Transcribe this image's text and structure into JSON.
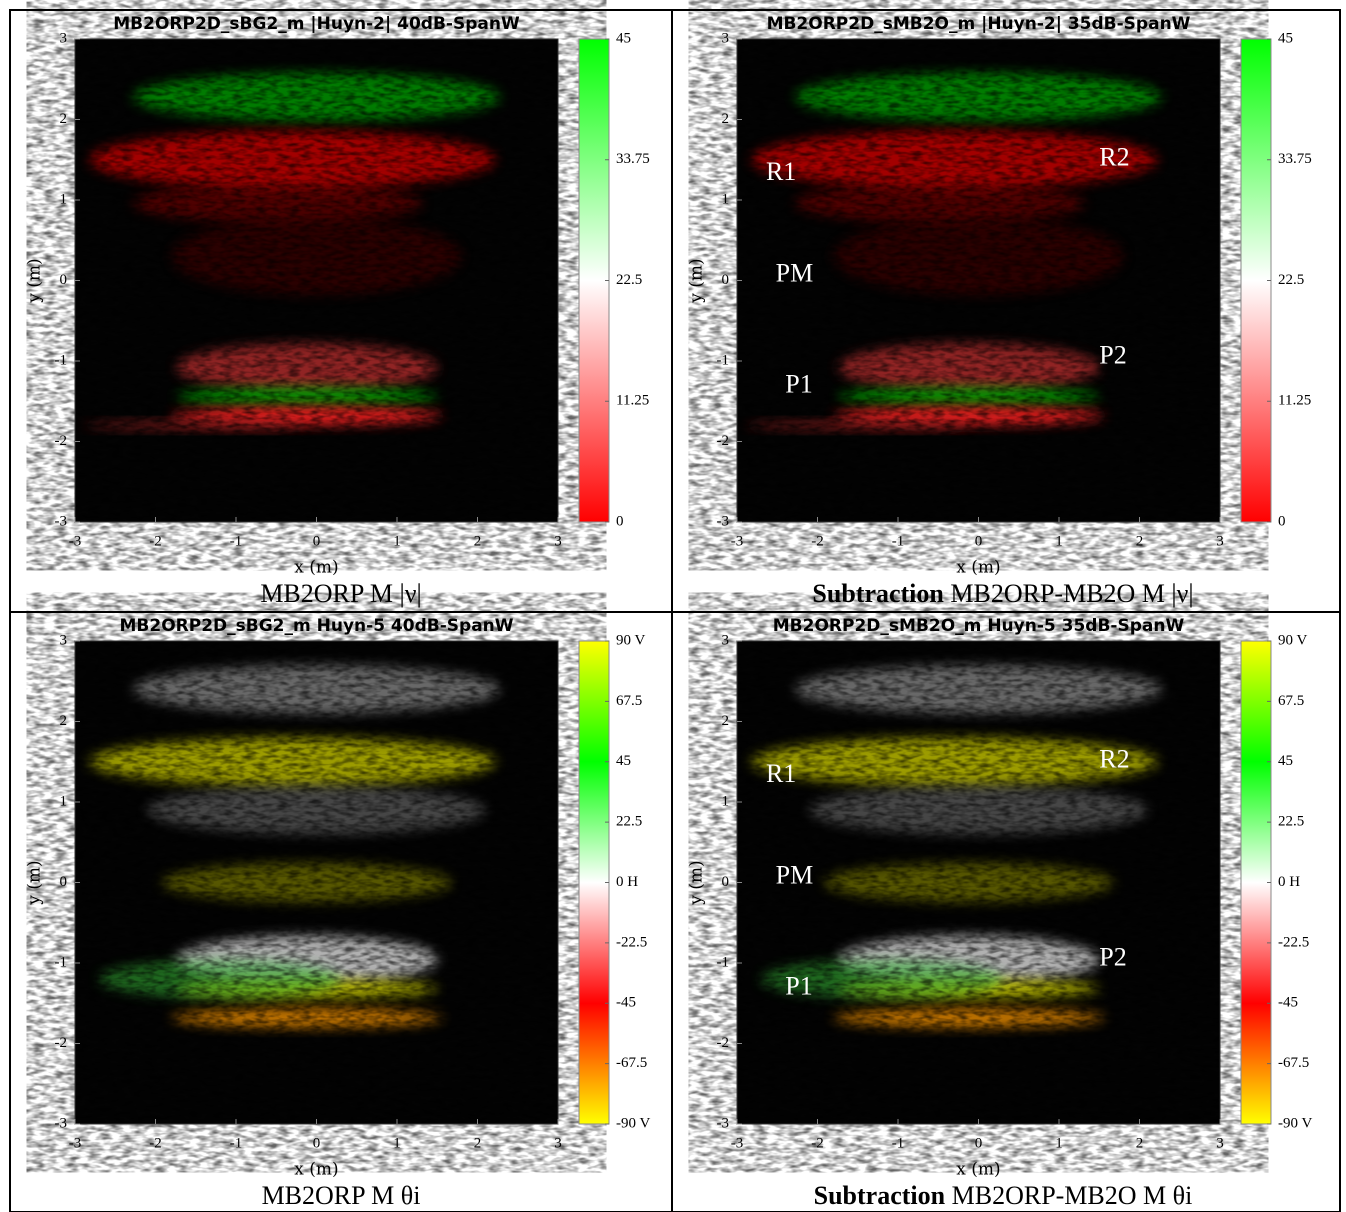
{
  "panels": [
    {
      "title": "MB2ORP2D_sBG2_m |Huyn-2| 40dB-SpanW",
      "xlabel": "x (m)",
      "ylabel": "y (m)",
      "xticks": [
        -3,
        -2,
        -1,
        0,
        1,
        2,
        3
      ],
      "yticks": [
        -3,
        -2,
        -1,
        0,
        1,
        2,
        3
      ],
      "colorbar_ticks": [
        0,
        11.25,
        22.5,
        33.75,
        45
      ],
      "colorbar_colors": [
        "#ff0000",
        "#ffffff",
        "#00ff00"
      ],
      "caption": {
        "text": "MB2ORP M |ν|"
      },
      "annotations": []
    },
    {
      "title": "MB2ORP2D_sMB2O_m |Huyn-2| 35dB-SpanW",
      "xlabel": "x (m)",
      "ylabel": "y (m)",
      "xticks": [
        -3,
        -2,
        -1,
        0,
        1,
        2,
        3
      ],
      "yticks": [
        -3,
        -2,
        -1,
        0,
        1,
        2,
        3
      ],
      "colorbar_ticks": [
        0,
        11.25,
        22.5,
        33.75,
        45
      ],
      "colorbar_colors": [
        "#ff0000",
        "#ffffff",
        "#00ff00"
      ],
      "caption": {
        "bold": "Subtraction",
        "text": "MB2ORP-MB2O M |ν|"
      },
      "annotations": [
        "R1",
        "R2",
        "PM",
        "P1",
        "P2"
      ]
    },
    {
      "title": "MB2ORP2D_sBG2_m Huyn-5 40dB-SpanW",
      "xlabel": "x (m)",
      "ylabel": "y (m)",
      "xticks": [
        -3,
        -2,
        -1,
        0,
        1,
        2,
        3
      ],
      "yticks": [
        -3,
        -2,
        -1,
        0,
        1,
        2,
        3
      ],
      "colorbar_ticks": [
        {
          "value": -90,
          "label": "-90 V"
        },
        -67.5,
        -45,
        -22.5,
        {
          "value": 0,
          "label": "0 H"
        },
        22.5,
        45,
        67.5,
        {
          "value": 90,
          "label": "90 V"
        }
      ],
      "colorbar_colors": [
        "#ffff00",
        "#ff0000",
        "#ffffff",
        "#00ff00",
        "#ffff00"
      ],
      "caption": {
        "text": "MB2ORP M θi"
      },
      "annotations": []
    },
    {
      "title": "MB2ORP2D_sMB2O_m Huyn-5 35dB-SpanW",
      "xlabel": "x (m)",
      "ylabel": "y (m)",
      "xticks": [
        -3,
        -2,
        -1,
        0,
        1,
        2,
        3
      ],
      "yticks": [
        -3,
        -2,
        -1,
        0,
        1,
        2,
        3
      ],
      "colorbar_ticks": [
        {
          "value": -90,
          "label": "-90 V"
        },
        -67.5,
        -45,
        -22.5,
        {
          "value": 0,
          "label": "0 H"
        },
        22.5,
        45,
        67.5,
        {
          "value": 90,
          "label": "90 V"
        }
      ],
      "colorbar_colors": [
        "#ffff00",
        "#ff0000",
        "#ffffff",
        "#00ff00",
        "#ffff00"
      ],
      "caption": {
        "bold": "Subtraction",
        "text": "MB2ORP-MB2O M θi"
      },
      "annotations": [
        "R1",
        "R2",
        "PM",
        "P1",
        "P2"
      ]
    }
  ]
}
